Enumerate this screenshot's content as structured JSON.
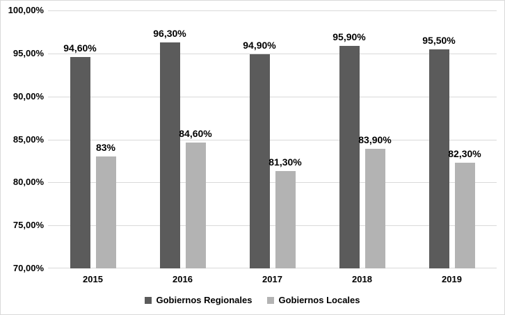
{
  "chart_data": {
    "type": "bar",
    "title": "",
    "categories": [
      "2015",
      "2016",
      "2017",
      "2018",
      "2019"
    ],
    "series": [
      {
        "name": "Gobiernos Regionales",
        "color": "#5B5B5B",
        "values": [
          94.6,
          96.3,
          94.9,
          95.9,
          95.5
        ],
        "labels": [
          "94,60%",
          "96,30%",
          "94,90%",
          "95,90%",
          "95,50%"
        ]
      },
      {
        "name": "Gobiernos Locales",
        "color": "#B3B3B3",
        "values": [
          83,
          84.6,
          81.3,
          83.9,
          82.3
        ],
        "labels": [
          "83%",
          "84,60%",
          "81,30%",
          "83,90%",
          "82,30%"
        ]
      }
    ],
    "y_axis": {
      "min": 70,
      "max": 100,
      "step": 5,
      "ticks": [
        {
          "value": 100,
          "label": "100,00%"
        },
        {
          "value": 95,
          "label": "95,00%"
        },
        {
          "value": 90,
          "label": "90,00%"
        },
        {
          "value": 85,
          "label": "85,00%"
        },
        {
          "value": 80,
          "label": "80,00%"
        },
        {
          "value": 75,
          "label": "75,00%"
        },
        {
          "value": 70,
          "label": "70,00%"
        }
      ]
    },
    "grid": true,
    "legend_position": "bottom",
    "colors": {
      "gridline": "#D9D9D9",
      "border": "#D9D9D9",
      "text": "#000000",
      "background": "#FFFFFF"
    }
  }
}
